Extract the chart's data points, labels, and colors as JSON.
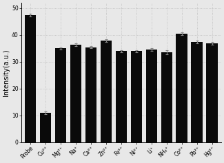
{
  "categories": [
    "Probe",
    "Cu²⁺",
    "Mg²⁺",
    "Na⁺",
    "Ca²⁺",
    "Zn²⁺",
    "Fe³⁺",
    "Ni²⁺",
    "Li⁺",
    "NH₄⁺",
    "Co²⁺",
    "Pb²⁺",
    "Hg²⁺"
  ],
  "values": [
    47.5,
    11.0,
    35.0,
    36.5,
    35.5,
    38.0,
    34.0,
    34.0,
    34.5,
    33.5,
    40.5,
    37.5,
    37.0
  ],
  "errors": [
    0.5,
    0.5,
    0.5,
    0.5,
    0.5,
    0.5,
    0.4,
    0.4,
    0.5,
    0.8,
    0.5,
    0.5,
    0.5
  ],
  "bar_color": "#0a0a0a",
  "error_color": "#888888",
  "ylabel": "Intensity(a.u.)",
  "ylim": [
    0,
    52
  ],
  "yticks": [
    0,
    10,
    20,
    30,
    40,
    50
  ],
  "background_color": "#e8e8e8",
  "bar_width": 0.75,
  "tick_fontsize": 5.5,
  "label_fontsize": 7
}
